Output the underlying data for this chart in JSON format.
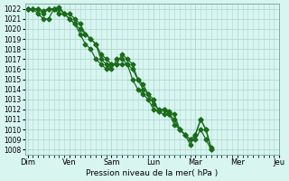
{
  "bg_color": "#d8f5f0",
  "grid_color": "#b0d8d0",
  "line_color": "#1a6b1a",
  "marker_color": "#1a6b1a",
  "ylabel_text": "Pression niveau de la mer( hPa )",
  "ylim": [
    1007.5,
    1022.5
  ],
  "yticks": [
    1008,
    1009,
    1010,
    1011,
    1012,
    1013,
    1014,
    1015,
    1016,
    1017,
    1018,
    1019,
    1020,
    1021,
    1022
  ],
  "day_labels": [
    "Dim",
    "Ven",
    "Sam",
    "Lun",
    "Mar",
    "Mer",
    "Jeu"
  ],
  "day_positions": [
    0,
    8,
    16,
    24,
    32,
    40,
    48
  ],
  "series1": [
    1022,
    1022,
    1022,
    1021.5,
    1022,
    1022,
    1021.5,
    1021.5,
    1021.5,
    1021,
    1020.5,
    1019.5,
    1019,
    1018.5,
    1017,
    1016.5,
    1016,
    1017,
    1017,
    1016.5,
    1015,
    1014,
    1013.5,
    1013,
    1012,
    1011.8,
    1011.5,
    1011.5,
    1011,
    1010,
    1009.5,
    1009,
    1009,
    1010,
    1009,
    1008
  ],
  "series2": [
    1022,
    1022,
    1021.5,
    1021,
    1021,
    1022,
    1022.2,
    1021.5,
    1021,
    1020.5,
    1019.5,
    1018.5,
    1018,
    1017,
    1016.5,
    1016,
    1016.5,
    1016.5,
    1017.5,
    1017,
    1016.5,
    1015,
    1014.5,
    1013.5,
    1013,
    1011.8,
    1012,
    1011.8,
    1011.5,
    1010,
    1009.5,
    1008.5,
    1009.5,
    1011,
    1010,
    1008
  ],
  "series3": [
    1022,
    1022,
    1022,
    1021.8,
    1022,
    1022,
    1022,
    1021.5,
    1021,
    1020.5,
    1020,
    1019.5,
    1019,
    1018.5,
    1017.5,
    1017,
    1016.5,
    1016.5,
    1016.5,
    1016.5,
    1016,
    1015,
    1014,
    1013.5,
    1012.5,
    1012,
    1012,
    1011.5,
    1010.5,
    1010,
    1009.5,
    1009,
    1009.5,
    1011,
    1010,
    1008.2
  ]
}
